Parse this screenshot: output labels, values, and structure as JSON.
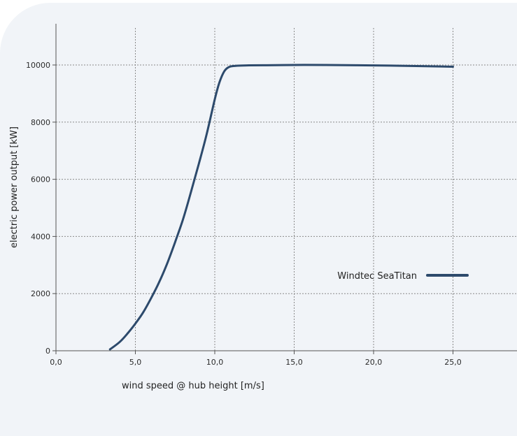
{
  "chart_data": {
    "type": "line",
    "xlabel": "wind speed @ hub height [m/s]",
    "ylabel": "electric power output [kW]",
    "xlim": [
      0,
      29
    ],
    "ylim": [
      0,
      11000
    ],
    "x_ticks": [
      "0,0",
      "5,0",
      "10,0",
      "15,0",
      "20,0",
      "25,0"
    ],
    "x_tick_values": [
      0,
      5,
      10,
      15,
      20,
      25
    ],
    "y_ticks": [
      "0",
      "2000",
      "4000",
      "6000",
      "8000",
      "10000"
    ],
    "y_tick_values": [
      0,
      2000,
      4000,
      6000,
      8000,
      10000
    ],
    "grid": true,
    "legend_position": "right",
    "series": [
      {
        "name": "Windtec SeaTitan",
        "color": "#2d4a6c",
        "x": [
          3.4,
          4,
          4.5,
          5,
          5.5,
          6,
          6.5,
          7,
          7.5,
          8,
          8.5,
          9,
          9.5,
          10,
          10.3,
          10.6,
          10.9,
          11.3,
          12,
          13,
          15,
          17,
          20,
          23,
          25
        ],
        "y": [
          50,
          300,
          600,
          950,
          1350,
          1850,
          2400,
          3050,
          3800,
          4600,
          5550,
          6550,
          7600,
          8800,
          9400,
          9780,
          9930,
          9970,
          9985,
          9990,
          10000,
          10000,
          9985,
          9960,
          9940
        ]
      }
    ]
  }
}
